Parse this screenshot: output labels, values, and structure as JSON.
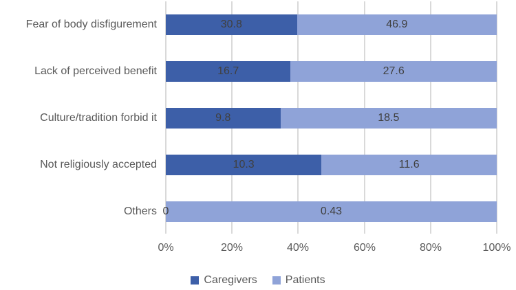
{
  "figure": {
    "background": "#ffffff"
  },
  "chart_data": {
    "type": "bar",
    "orientation": "horizontal",
    "stacking": "100%",
    "title": "",
    "categories": [
      "Fear of body disfigurement",
      "Lack of perceived benefit",
      "Culture/tradition forbid it",
      "Not religiously accepted",
      "Others"
    ],
    "series": [
      {
        "name": "Caregivers",
        "color": "#3D5FA8",
        "values": [
          30.8,
          16.7,
          9.8,
          10.3,
          0
        ],
        "labels": [
          "30.8",
          "16.7",
          "9.8",
          "10.3",
          "0"
        ]
      },
      {
        "name": "Patients",
        "color": "#8FA3D8",
        "values": [
          46.9,
          27.6,
          18.5,
          11.6,
          0.43
        ],
        "labels": [
          "46.9",
          "27.6",
          "18.5",
          "11.6",
          "0.43"
        ]
      }
    ],
    "x_axis": {
      "tick_labels": [
        "0%",
        "20%",
        "40%",
        "60%",
        "80%",
        "100%"
      ],
      "range_pct": [
        0,
        100
      ],
      "gridlines": "vertical"
    },
    "legend": {
      "position": "bottom",
      "entries": [
        "Caregivers",
        "Patients"
      ]
    },
    "styles": {
      "gridline_color": "#D9D9D9",
      "axis_text_color": "#595959",
      "category_text_color": "#595959",
      "data_label_color": "#404040",
      "legend_text_color": "#595959"
    }
  }
}
